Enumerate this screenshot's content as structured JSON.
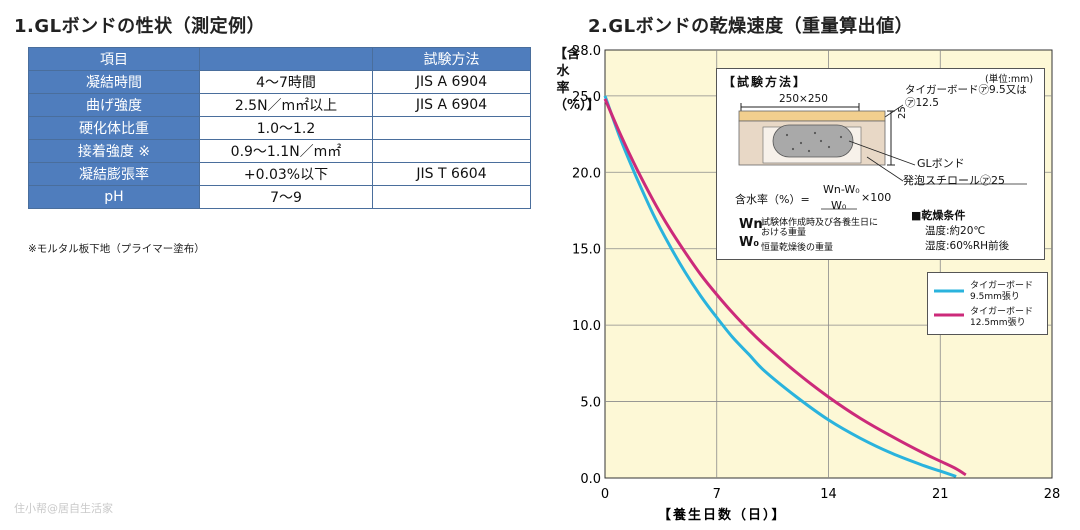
{
  "titles": {
    "table_title": "1.GLボンドの性状（測定例）",
    "chart_title": "2.GLボンドの乾燥速度（重量算出値）"
  },
  "table": {
    "headers": [
      "項目",
      "",
      "試験方法"
    ],
    "rows": [
      {
        "item": "凝結時間",
        "value": "4〜7時間",
        "method": "JIS A 6904"
      },
      {
        "item": "曲げ強度",
        "value": "2.5N／m㎡以上",
        "method": "JIS A 6904"
      },
      {
        "item": "硬化体比重",
        "value": "1.0〜1.2",
        "method": ""
      },
      {
        "item": "接着強度 ※",
        "value": "0.9〜1.1N／m㎡",
        "method": ""
      },
      {
        "item": "凝結膨張率",
        "value": "+0.03%以下",
        "method": "JIS T 6604"
      },
      {
        "item": "pH",
        "value": "7〜9",
        "method": ""
      }
    ],
    "note": "※モルタル板下地（プライマー塗布）"
  },
  "chart_data": {
    "type": "line",
    "xlabel": "【養生日数（日）】",
    "ylabel": "【含水率（%）】",
    "xlim": [
      0,
      28
    ],
    "ylim": [
      0,
      28
    ],
    "xticks": [
      "0",
      "7",
      "14",
      "21",
      "28"
    ],
    "yticks": [
      "0.0",
      "5.0",
      "10.0",
      "15.0",
      "20.0",
      "25.0",
      "28.0"
    ],
    "grid": true,
    "legend_position": "right",
    "series": [
      {
        "name": "タイガーボード 9.5mm張り",
        "color": "#2ab3dd",
        "x": [
          0,
          1,
          2,
          3,
          4,
          5,
          6,
          7,
          8,
          9,
          10,
          12,
          14,
          16,
          18,
          20,
          21,
          22
        ],
        "y": [
          25.0,
          22.1,
          19.6,
          17.3,
          15.3,
          13.5,
          11.9,
          10.5,
          9.2,
          8.1,
          7.0,
          5.3,
          3.8,
          2.6,
          1.6,
          0.8,
          0.45,
          0.1
        ]
      },
      {
        "name": "タイガーボード 12.5mm張り",
        "color": "#cc2a7a",
        "x": [
          0,
          1,
          2,
          3,
          4,
          5,
          6,
          7,
          8,
          9,
          10,
          12,
          14,
          16,
          18,
          20,
          21,
          22,
          22.6
        ],
        "y": [
          24.8,
          22.4,
          20.2,
          18.2,
          16.4,
          14.8,
          13.3,
          12.0,
          10.8,
          9.7,
          8.7,
          6.9,
          5.3,
          3.9,
          2.7,
          1.6,
          1.1,
          0.6,
          0.2
        ]
      }
    ]
  },
  "inset": {
    "heading": "【試験方法】",
    "unit": "(単位:mm)",
    "board_label": "タイガーボード㋐9.5又は",
    "board_label2": "㋐12.5",
    "dimension": "250×250",
    "height_label": "25",
    "bond_label": "GLボンド",
    "foam_label": "発泡スチロール㋐25",
    "formula_prefix": "含水率（%）=",
    "formula_numerator": "Wn-W₀",
    "formula_denominator": "W₀",
    "formula_suffix": "×100",
    "wn_symbol": "Wn",
    "wn_text_1": "試験体作成時及び各養生日に",
    "wn_text_2": "おける重量",
    "w0_symbol": "W₀",
    "w0_text": "恒量乾燥後の重量",
    "condition_heading": "■乾燥条件",
    "condition_temp": "温度:約20℃",
    "condition_humidity": "湿度:60%RH前後"
  },
  "legend": {
    "s1_line1": "タイガーボード",
    "s1_line2": "9.5mm張り",
    "s2_line1": "タイガーボード",
    "s2_line2": "12.5mm張り"
  },
  "watermark": "住小帮@居自生活家",
  "colors": {
    "table_header": "#4f7dbd",
    "plot_background": "#fdf8d6",
    "series_1": "#2ab3dd",
    "series_2": "#cc2a7a"
  }
}
